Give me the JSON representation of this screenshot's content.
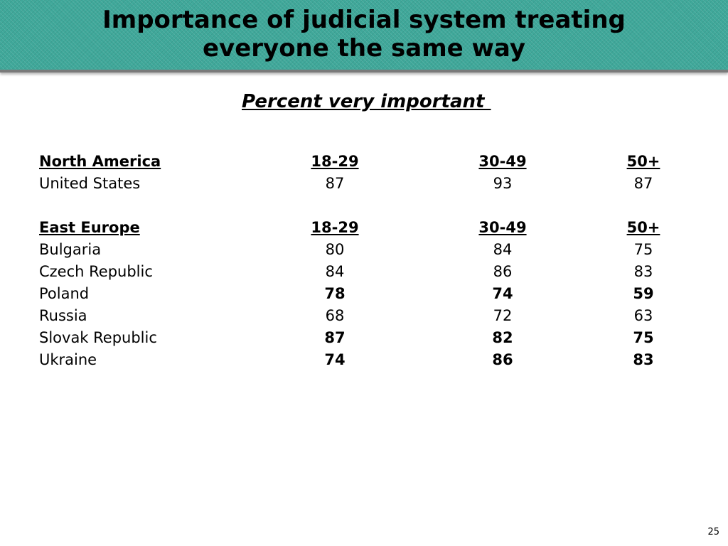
{
  "slide": {
    "title_line1": "Importance of judicial system treating",
    "title_line2": "everyone the same way",
    "subtitle": "Percent very important ",
    "page_number": "25"
  },
  "columns": [
    "18-29",
    "30-49",
    "50+"
  ],
  "sections": [
    {
      "region": "North America",
      "headers": [
        "18-29",
        "30-49",
        "50+"
      ],
      "rows": [
        {
          "country": "United States",
          "values": [
            "87",
            "93",
            "87"
          ],
          "bold": false
        }
      ]
    },
    {
      "region": "East Europe",
      "headers": [
        "18-29",
        "30-49",
        "50+"
      ],
      "rows": [
        {
          "country": "Bulgaria",
          "values": [
            "80",
            "84",
            "75"
          ],
          "bold": false
        },
        {
          "country": "Czech Republic",
          "values": [
            "84",
            "86",
            "83"
          ],
          "bold": false
        },
        {
          "country": "Poland",
          "values": [
            "78",
            "74",
            "59"
          ],
          "bold": true
        },
        {
          "country": "Russia",
          "values": [
            "68",
            "72",
            "63"
          ],
          "bold": false
        },
        {
          "country": "Slovak Republic",
          "values": [
            "87",
            "82",
            "75"
          ],
          "bold": true
        },
        {
          "country": "Ukraine",
          "values": [
            "74",
            "86",
            "83"
          ],
          "bold": true
        }
      ]
    }
  ],
  "colors": {
    "title_band": "#3fa89a",
    "text": "#000000",
    "background": "#ffffff"
  }
}
